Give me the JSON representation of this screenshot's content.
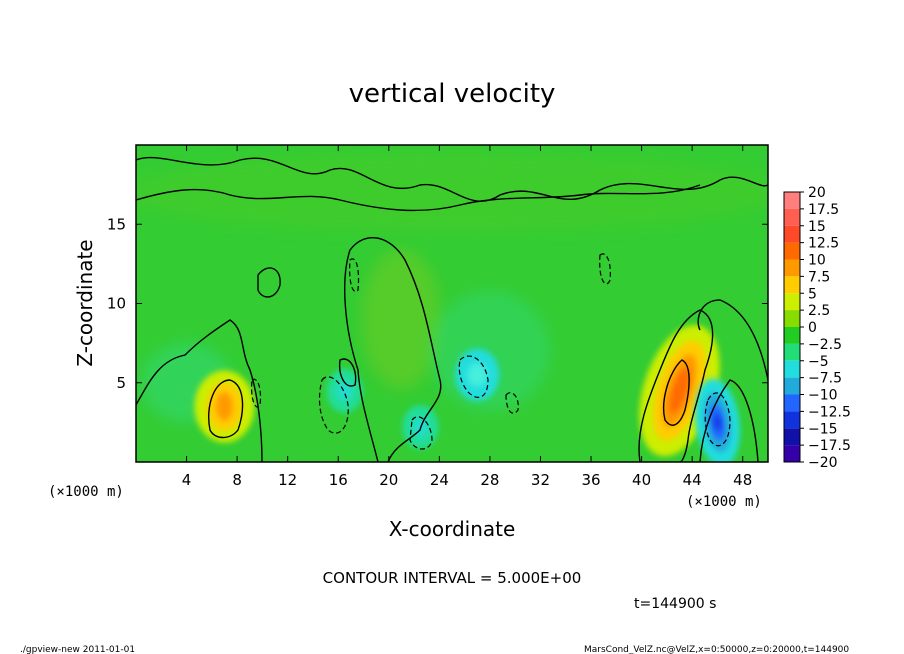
{
  "chart_data": {
    "type": "heatmap",
    "title": "vertical velocity",
    "xlabel": "X-coordinate",
    "ylabel": "Z-coordinate",
    "x_unit": "(×1000 m)",
    "z_unit": "(×1000 m)",
    "xlim": [
      0,
      50
    ],
    "ylim": [
      0,
      20
    ],
    "x_ticks": [
      4,
      8,
      12,
      16,
      20,
      24,
      28,
      32,
      36,
      40,
      44,
      48
    ],
    "y_ticks": [
      5,
      10,
      15
    ],
    "contour_interval_text": "CONTOUR INTERVAL = 5.000E+00",
    "time_text": "t=144900 s",
    "colorbar": {
      "levels": [
        "20",
        "17.5",
        "15",
        "12.5",
        "10",
        "7.5",
        "5",
        "2.5",
        "0",
        "-2.5",
        "-5",
        "-7.5",
        "-10",
        "-12.5",
        "-15",
        "-17.5",
        "-20"
      ],
      "colors": [
        "#ff7f7f",
        "#ff5f50",
        "#ff4a2a",
        "#ff6a00",
        "#ff9900",
        "#ffcc00",
        "#ccee00",
        "#88dd00",
        "#22cc22",
        "#22dd77",
        "#22dddd",
        "#22aadd",
        "#2266ff",
        "#1133dd",
        "#1111aa",
        "#3300aa",
        "#7700bb"
      ]
    },
    "features": [
      {
        "type": "updraft",
        "x": 7,
        "z": 3.5,
        "max": 10
      },
      {
        "type": "updraft",
        "x": 43,
        "z": 4.5,
        "max": 15
      },
      {
        "type": "downdraft",
        "x": 46,
        "z": 2.5,
        "min": -15
      },
      {
        "type": "downdraft",
        "x": 27,
        "z": 5.5,
        "min": -7.5
      },
      {
        "type": "downdraft",
        "x": 22.5,
        "z": 2.2,
        "min": -5
      },
      {
        "type": "downdraft",
        "x": 16.5,
        "z": 4.5,
        "min": -5
      }
    ]
  },
  "footer": {
    "left": "./gpview-new   2011-01-01",
    "right": "MarsCond_VelZ.nc@VelZ,x=0:50000,z=0:20000,t=144900"
  }
}
